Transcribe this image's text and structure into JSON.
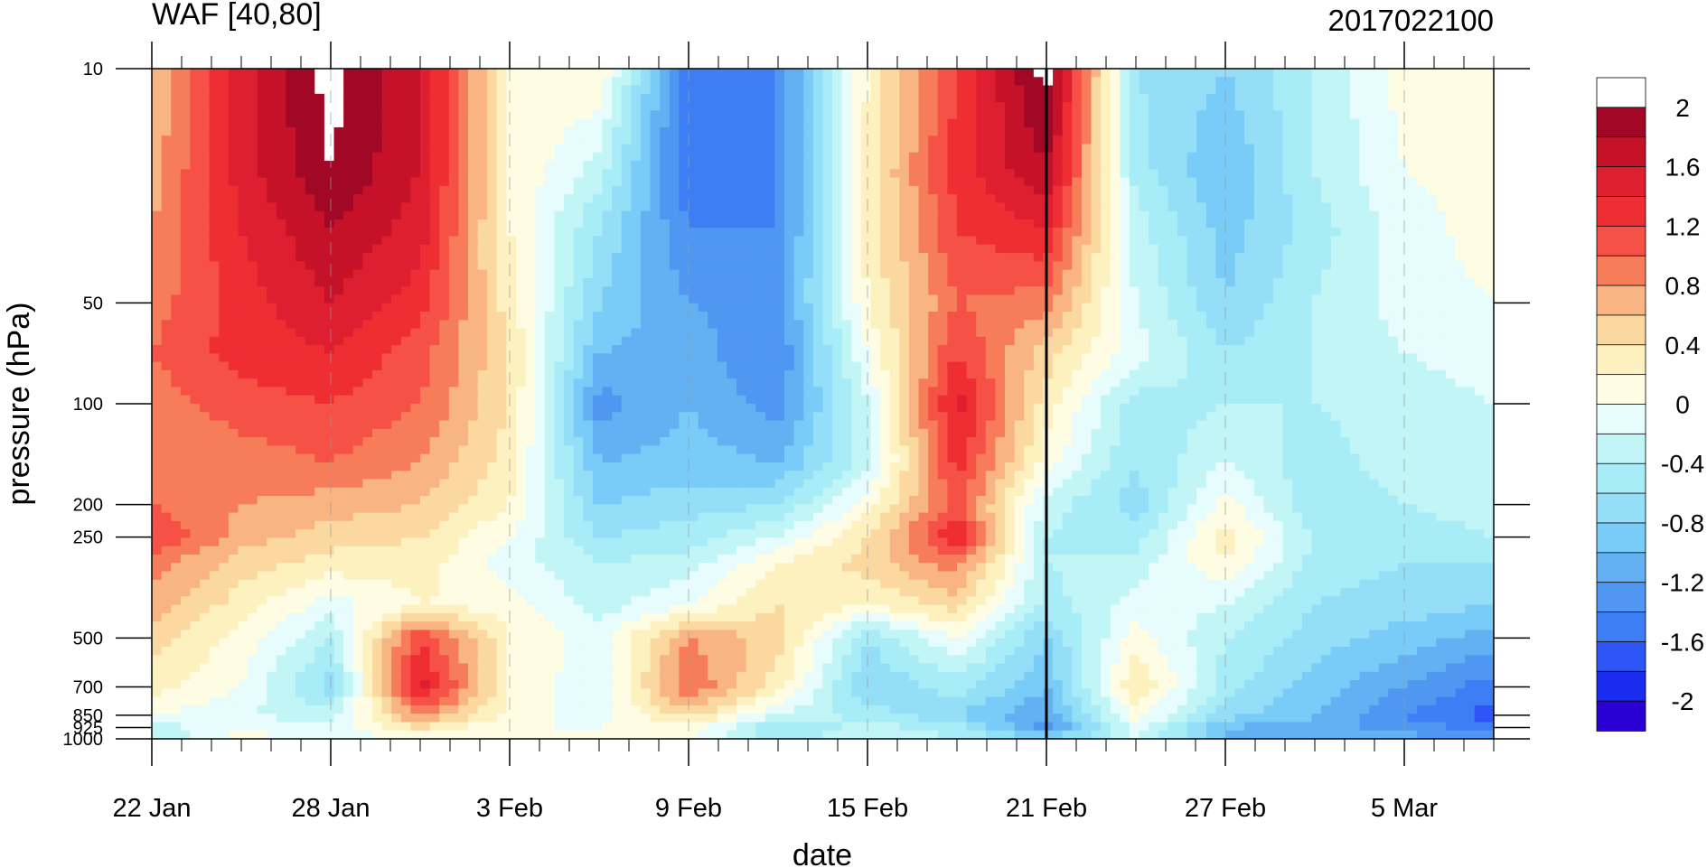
{
  "chart_data": {
    "type": "heatmap",
    "title": "WAF [40,80]",
    "subtitle": "2017022100",
    "xlabel": "date",
    "ylabel": "pressure (hPa)",
    "x_axis": {
      "type": "date",
      "range": [
        "2017-01-22",
        "2017-03-08"
      ],
      "ticks": [
        {
          "date": "2017-01-22",
          "label": "22 Jan"
        },
        {
          "date": "2017-01-28",
          "label": "28 Jan"
        },
        {
          "date": "2017-02-03",
          "label": "3 Feb"
        },
        {
          "date": "2017-02-09",
          "label": "9 Feb"
        },
        {
          "date": "2017-02-15",
          "label": "15 Feb"
        },
        {
          "date": "2017-02-21",
          "label": "21 Feb"
        },
        {
          "date": "2017-02-27",
          "label": "27 Feb"
        },
        {
          "date": "2017-03-05",
          "label": "5 Mar"
        }
      ]
    },
    "y_axis": {
      "scale": "log",
      "reversed": true,
      "range": [
        10,
        1000
      ],
      "ticks": [
        10,
        50,
        100,
        200,
        250,
        500,
        700,
        850,
        925,
        1000
      ]
    },
    "marker_date": "2017-02-21",
    "colorbar": {
      "levels": [
        -2.2,
        -2.0,
        -1.8,
        -1.6,
        -1.4,
        -1.2,
        -1.0,
        -0.8,
        -0.6,
        -0.4,
        -0.2,
        0,
        0.2,
        0.4,
        0.6,
        0.8,
        1.0,
        1.2,
        1.4,
        1.6,
        1.8,
        2.0,
        2.2
      ],
      "colors": [
        "#2a00d4",
        "#1a2cf0",
        "#2e55f5",
        "#3d7ef5",
        "#4f97f0",
        "#63b1f2",
        "#78ccf7",
        "#94def8",
        "#a8ecf7",
        "#c2f5f6",
        "#e7fcfc",
        "#fefce3",
        "#fdf1c0",
        "#fbd8a0",
        "#f9b483",
        "#f77d5a",
        "#f55146",
        "#ef2e33",
        "#de1f30",
        "#c61229",
        "#a10826",
        "#ffffff"
      ],
      "labels": [
        "2",
        "1.6",
        "1.2",
        "0.8",
        "0.4",
        "0",
        "-0.4",
        "-0.8",
        "-1.2",
        "-1.6",
        "-2"
      ],
      "label_values": [
        2,
        1.6,
        1.2,
        0.8,
        0.4,
        0,
        -0.4,
        -0.8,
        -1.2,
        -1.6,
        -2
      ]
    },
    "grid": {
      "dates": [
        "2017-01-22",
        "2017-01-25",
        "2017-01-28",
        "2017-01-31",
        "2017-02-03",
        "2017-02-06",
        "2017-02-09",
        "2017-02-12",
        "2017-02-15",
        "2017-02-18",
        "2017-02-21",
        "2017-02-24",
        "2017-02-27",
        "2017-03-02",
        "2017-03-05",
        "2017-03-08"
      ],
      "pressure": [
        10,
        20,
        30,
        50,
        70,
        100,
        150,
        200,
        250,
        300,
        400,
        500,
        700,
        850,
        925,
        1000
      ],
      "values": [
        [
          0.6,
          1.5,
          2.1,
          1.6,
          0.2,
          0.2,
          -1.6,
          -1.4,
          0.2,
          1.2,
          2.1,
          -0.6,
          -0.8,
          -0.4,
          0.1,
          0.1
        ],
        [
          0.7,
          1.5,
          2.0,
          1.6,
          0.2,
          -0.3,
          -1.6,
          -1.4,
          0.3,
          1.3,
          1.8,
          -0.5,
          -1.0,
          -0.4,
          0.0,
          0.1
        ],
        [
          0.8,
          1.4,
          1.8,
          1.5,
          0.2,
          -0.6,
          -1.4,
          -1.4,
          0.3,
          1.2,
          1.4,
          -0.3,
          -0.9,
          -0.5,
          -0.1,
          0.1
        ],
        [
          0.9,
          1.3,
          1.6,
          1.3,
          0.3,
          -0.8,
          -1.2,
          -1.3,
          0.2,
          1.0,
          0.9,
          -0.2,
          -0.8,
          -0.4,
          -0.1,
          0.0
        ],
        [
          1.0,
          1.3,
          1.4,
          1.1,
          0.4,
          -1.0,
          -1.1,
          -1.4,
          0.0,
          1.2,
          0.5,
          -0.1,
          -0.6,
          -0.4,
          -0.2,
          -0.1
        ],
        [
          0.9,
          1.1,
          1.2,
          1.0,
          0.4,
          -1.3,
          -1.0,
          -1.3,
          -0.2,
          1.5,
          0.3,
          -0.5,
          -0.4,
          -0.4,
          -0.3,
          -0.2
        ],
        [
          0.8,
          0.9,
          1.0,
          0.8,
          0.3,
          -1.0,
          -0.9,
          -1.0,
          -0.3,
          1.3,
          0.1,
          -0.6,
          -0.2,
          -0.5,
          -0.3,
          -0.3
        ],
        [
          1.0,
          0.8,
          0.7,
          0.6,
          0.2,
          -0.8,
          -0.7,
          -0.6,
          0.1,
          1.1,
          -0.3,
          -0.7,
          0.1,
          -0.6,
          -0.4,
          -0.3
        ],
        [
          1.2,
          0.7,
          0.5,
          0.4,
          0.0,
          -0.6,
          -0.5,
          -0.2,
          0.4,
          1.4,
          -0.4,
          -0.5,
          0.3,
          -0.4,
          -0.5,
          -0.4
        ],
        [
          0.9,
          0.5,
          0.3,
          0.3,
          -0.1,
          -0.4,
          -0.3,
          0.2,
          0.5,
          0.9,
          -0.4,
          -0.3,
          0.2,
          -0.5,
          -0.6,
          -0.6
        ],
        [
          0.7,
          0.3,
          -0.1,
          0.2,
          0.1,
          -0.3,
          0.0,
          0.4,
          0.2,
          0.5,
          -0.5,
          -0.1,
          -0.2,
          -0.6,
          -0.7,
          -0.8
        ],
        [
          0.5,
          0.1,
          -0.4,
          1.2,
          0.2,
          -0.1,
          0.8,
          0.5,
          -0.6,
          0.0,
          -0.8,
          0.1,
          -0.4,
          -0.7,
          -0.9,
          -1.1
        ],
        [
          0.3,
          0.0,
          -0.7,
          1.5,
          0.2,
          -0.2,
          1.0,
          0.3,
          -0.8,
          -0.5,
          -1.0,
          0.4,
          -0.5,
          -0.9,
          -1.2,
          -1.5
        ],
        [
          0.0,
          -0.2,
          -0.3,
          0.9,
          0.1,
          -0.1,
          0.5,
          -0.2,
          -0.5,
          -0.8,
          -1.2,
          0.1,
          -0.7,
          -1.0,
          -1.4,
          -1.7
        ],
        [
          -0.3,
          0.0,
          -0.1,
          0.4,
          0.0,
          0.0,
          0.1,
          -0.6,
          -0.3,
          -0.5,
          -1.3,
          -0.1,
          -1.0,
          -1.1,
          -1.3,
          -1.5
        ],
        [
          -0.4,
          0.1,
          -0.2,
          0.1,
          0.0,
          0.0,
          0.0,
          -0.5,
          -0.2,
          -0.4,
          -0.8,
          -0.2,
          -1.0,
          -1.0,
          -1.1,
          -1.2
        ]
      ]
    }
  },
  "colors": {
    "background": "#ffffff",
    "axis": "#000000"
  }
}
